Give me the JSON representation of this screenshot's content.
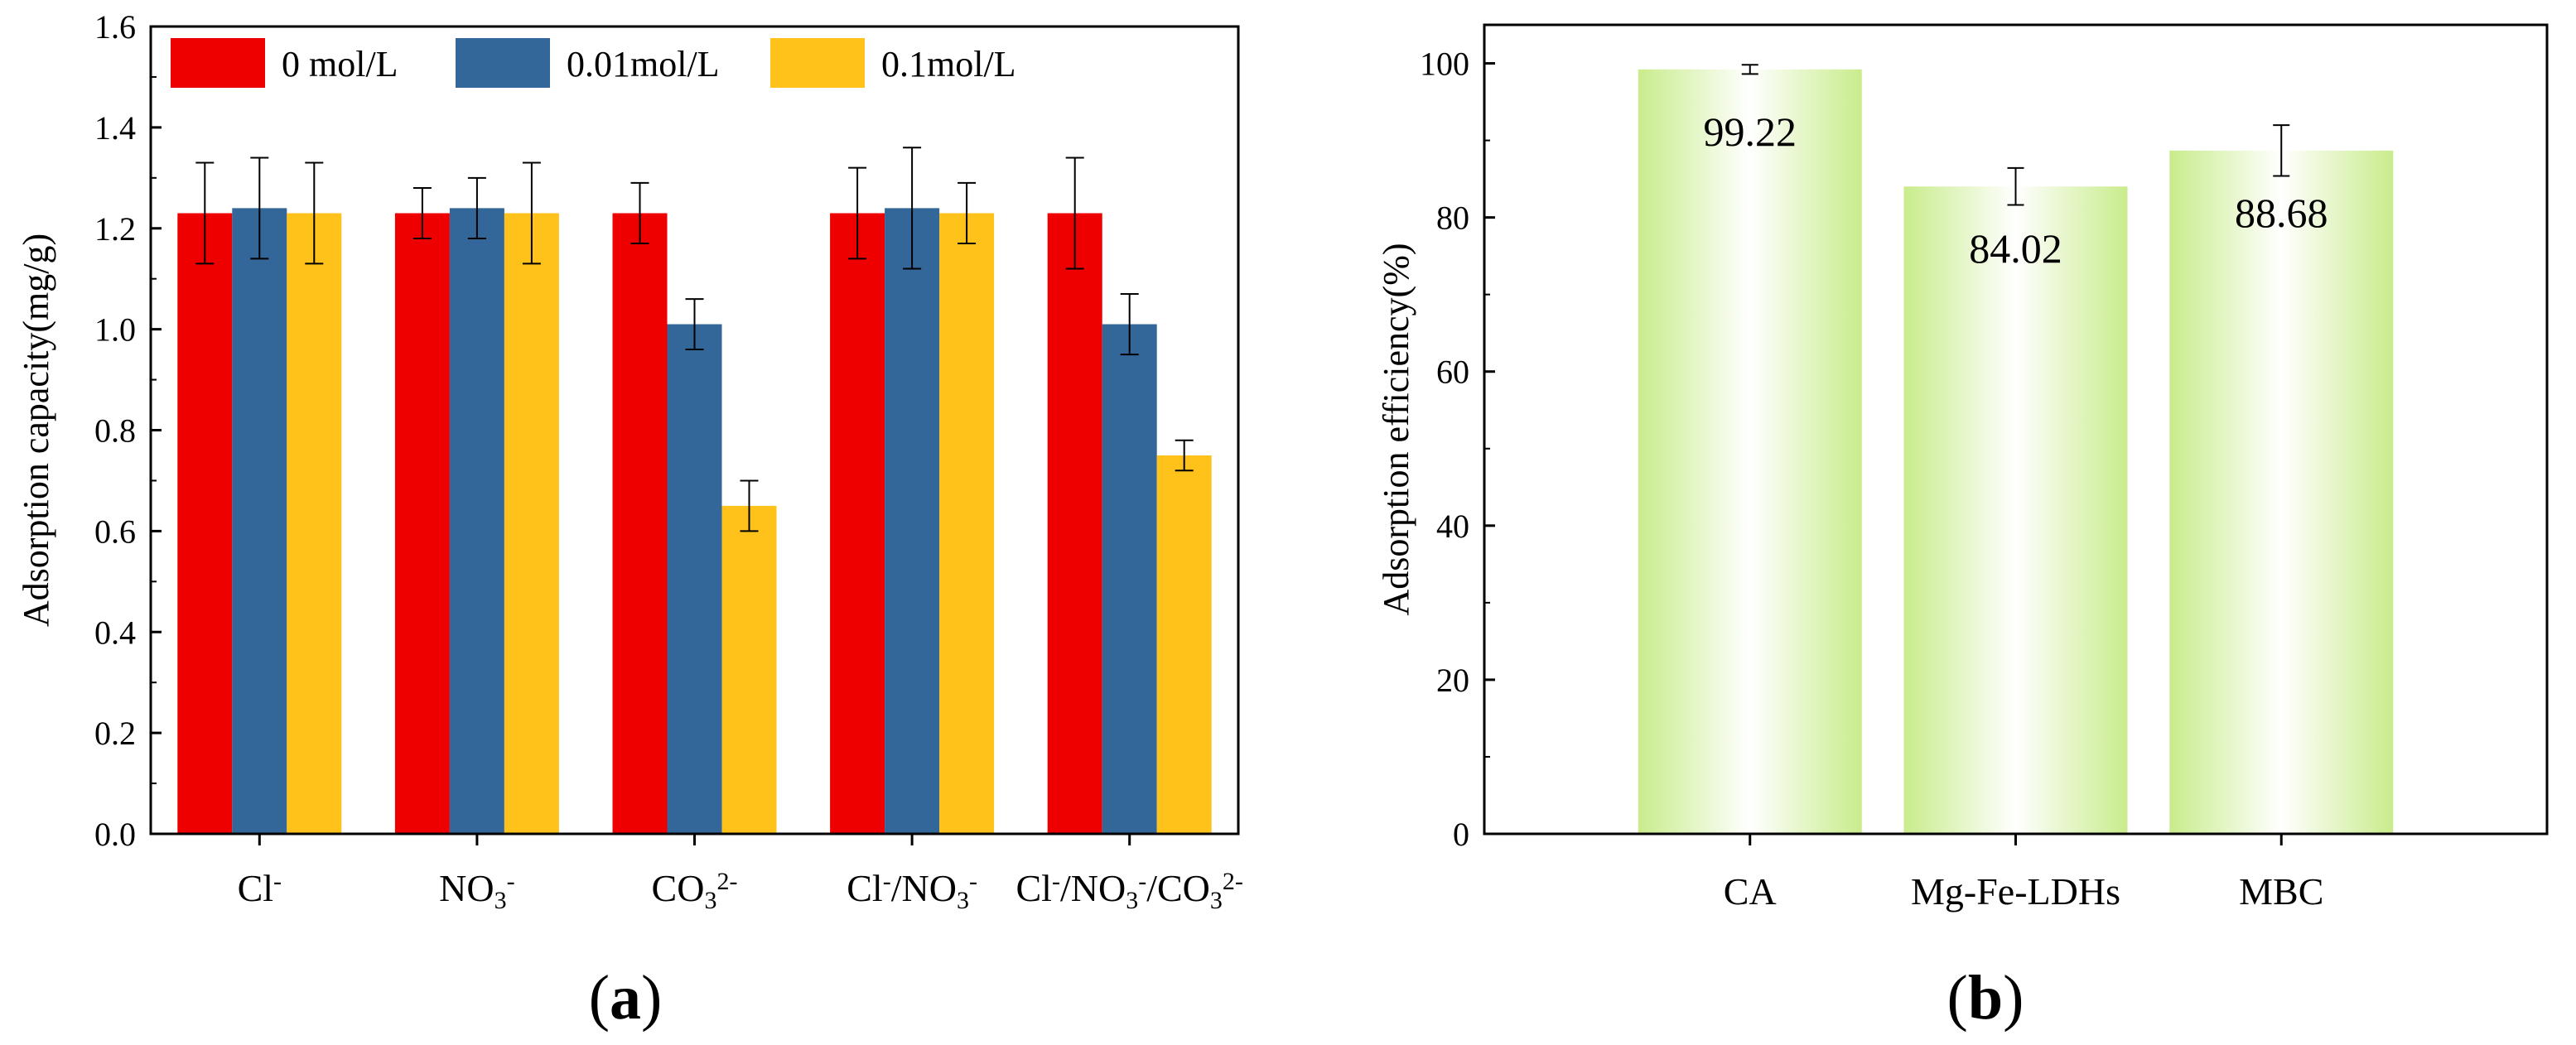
{
  "chart_data": [
    {
      "type": "bar",
      "panel_label_open": "(",
      "panel_label_letter": "a",
      "panel_label_close": ")",
      "categories": [
        "Cl",
        "NO3",
        "CO3",
        "Cl/NO3",
        "Cl/NO3/CO3"
      ],
      "category_labels": [
        [
          {
            "t": "Cl"
          },
          {
            "t": "-",
            "s": "sup"
          }
        ],
        [
          {
            "t": "NO"
          },
          {
            "t": "3",
            "s": "sub"
          },
          {
            "t": "-",
            "s": "sup"
          }
        ],
        [
          {
            "t": "CO"
          },
          {
            "t": "3",
            "s": "sub"
          },
          {
            "t": "2-",
            "s": "sup"
          }
        ],
        [
          {
            "t": "Cl"
          },
          {
            "t": "-",
            "s": "sup"
          },
          {
            "t": "/NO"
          },
          {
            "t": "3",
            "s": "sub"
          },
          {
            "t": "-",
            "s": "sup"
          }
        ],
        [
          {
            "t": "Cl"
          },
          {
            "t": "-",
            "s": "sup"
          },
          {
            "t": "/NO"
          },
          {
            "t": "3",
            "s": "sub"
          },
          {
            "t": "-",
            "s": "sup"
          },
          {
            "t": "/CO"
          },
          {
            "t": "3",
            "s": "sub"
          },
          {
            "t": "2-",
            "s": "sup"
          }
        ]
      ],
      "series": [
        {
          "name": "0 mol/L",
          "color": "#ee0000",
          "values": [
            1.23,
            1.23,
            1.23,
            1.23,
            1.23
          ],
          "errors": [
            0.1,
            0.05,
            0.06,
            0.09,
            0.11
          ]
        },
        {
          "name": "0.01mol/L",
          "color": "#336699",
          "values": [
            1.24,
            1.24,
            1.01,
            1.24,
            1.01
          ],
          "errors": [
            0.1,
            0.06,
            0.05,
            0.12,
            0.06
          ]
        },
        {
          "name": "0.1mol/L",
          "color": "#ffc21a",
          "values": [
            1.23,
            1.23,
            0.65,
            1.23,
            0.75
          ],
          "errors": [
            0.1,
            0.1,
            0.05,
            0.06,
            0.03
          ]
        }
      ],
      "ylabel": "Adsorption capacity(mg/g)",
      "xlabel": "",
      "ylim": [
        0.0,
        1.6
      ],
      "yticks": [
        "0.0",
        "0.2",
        "0.4",
        "0.6",
        "0.8",
        "1.0",
        "1.2",
        "1.4",
        "1.6"
      ],
      "legend_position": "top-left"
    },
    {
      "type": "bar",
      "panel_label_open": "(",
      "panel_label_letter": "b",
      "panel_label_close": ")",
      "categories": [
        "CA",
        "Mg-Fe-LDHs",
        "MBC"
      ],
      "values": [
        99.22,
        84.02,
        88.68
      ],
      "data_labels": [
        "99.22",
        "84.02",
        "88.68"
      ],
      "errors": [
        0.6,
        2.4,
        3.3
      ],
      "bar_color": "#c9ec8c",
      "bar_color_center": "#ffffff",
      "ylabel": "Adsorption efficiency(%)",
      "xlabel": "",
      "ylim": [
        0,
        105
      ],
      "yticks": [
        "0",
        "20",
        "40",
        "60",
        "80",
        "100"
      ]
    }
  ]
}
